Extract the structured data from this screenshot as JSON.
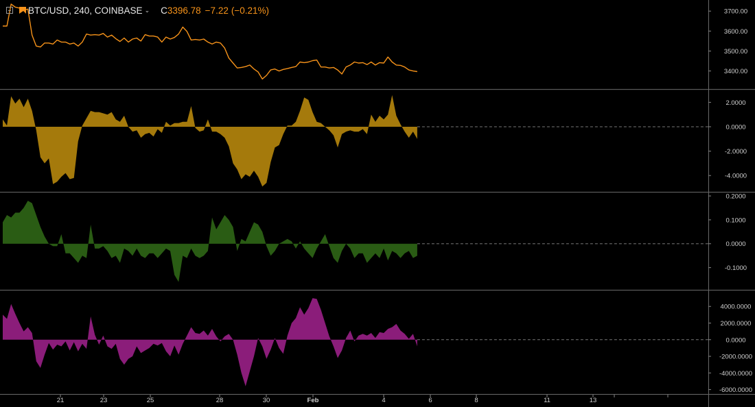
{
  "header": {
    "symbol": "BTC/USD, 240, COINBASE",
    "close_label": "C",
    "close_value": "3396.78",
    "change": "−7.22",
    "change_pct": "(−0.21%)",
    "icon": "flag-icon",
    "accent": "#f7931a"
  },
  "x_axis": {
    "ticks": [
      "21",
      "23",
      "25",
      "28",
      "30",
      "Feb",
      "4",
      "6",
      "8",
      "11",
      "13"
    ]
  },
  "panes": [
    {
      "id": "price",
      "type": "line",
      "color": "#f7931a",
      "ylim": [
        3330,
        3735
      ],
      "ticks": [
        3700,
        3600,
        3500,
        3400
      ],
      "tick_labels": [
        "3700.00",
        "3600.00",
        "3500.00",
        "3400.00"
      ],
      "values": [
        3625,
        3625,
        3735,
        3720,
        3715,
        3705,
        3710,
        3580,
        3525,
        3520,
        3540,
        3540,
        3535,
        3555,
        3545,
        3545,
        3535,
        3540,
        3525,
        3545,
        3585,
        3580,
        3582,
        3580,
        3588,
        3570,
        3580,
        3562,
        3548,
        3565,
        3545,
        3560,
        3565,
        3550,
        3582,
        3575,
        3575,
        3570,
        3545,
        3570,
        3560,
        3568,
        3585,
        3620,
        3598,
        3555,
        3558,
        3555,
        3560,
        3545,
        3535,
        3545,
        3540,
        3515,
        3465,
        3440,
        3415,
        3418,
        3422,
        3430,
        3410,
        3395,
        3360,
        3378,
        3405,
        3410,
        3400,
        3408,
        3412,
        3418,
        3422,
        3445,
        3442,
        3445,
        3452,
        3455,
        3420,
        3420,
        3415,
        3418,
        3405,
        3385,
        3420,
        3430,
        3445,
        3440,
        3442,
        3432,
        3445,
        3430,
        3442,
        3440,
        3470,
        3445,
        3430,
        3428,
        3420,
        3405,
        3400,
        3397
      ]
    },
    {
      "id": "osc1",
      "type": "area",
      "color": "#a57a0c",
      "ylim": [
        -5.0,
        2.75
      ],
      "ticks": [
        2,
        0,
        -2,
        -4
      ],
      "tick_labels": [
        "2.0000",
        "0.0000",
        "-2.0000",
        "-4.0000"
      ],
      "values": [
        0.6,
        0.1,
        2.5,
        1.9,
        2.3,
        1.6,
        2.3,
        1.3,
        -0.3,
        -2.5,
        -3.0,
        -2.6,
        -4.7,
        -4.5,
        -4.1,
        -3.8,
        -4.3,
        -4.2,
        -1.2,
        0.1,
        0.7,
        1.3,
        1.2,
        1.2,
        1.1,
        1.0,
        1.2,
        0.6,
        0.4,
        0.9,
        0.0,
        -0.4,
        -0.3,
        -0.9,
        -0.6,
        -0.5,
        -0.8,
        -0.2,
        -0.5,
        0.4,
        0.1,
        0.3,
        0.3,
        0.4,
        0.4,
        1.7,
        -0.1,
        -0.4,
        -0.3,
        0.6,
        -0.4,
        -0.4,
        -0.6,
        -0.9,
        -1.6,
        -3.0,
        -3.5,
        -4.3,
        -3.9,
        -4.1,
        -3.6,
        -4.1,
        -4.9,
        -4.6,
        -2.9,
        -1.7,
        -1.5,
        -0.6,
        0.1,
        0.1,
        0.4,
        1.3,
        2.4,
        2.2,
        1.2,
        0.4,
        0.3,
        0.0,
        -0.3,
        -0.7,
        -1.7,
        -0.6,
        -0.4,
        -0.3,
        -0.4,
        -0.4,
        -0.2,
        -0.6,
        1.0,
        0.4,
        0.9,
        0.6,
        1.0,
        2.6,
        0.9,
        0.2,
        -0.4,
        -0.9,
        -0.4,
        -1.0
      ]
    },
    {
      "id": "osc2",
      "type": "area",
      "color": "#2a5c14",
      "ylim": [
        -0.17,
        0.2
      ],
      "ticks": [
        0.2,
        0.1,
        0,
        -0.1
      ],
      "tick_labels": [
        "0.2000",
        "0.1000",
        "0.0000",
        "-0.1000"
      ],
      "values": [
        0.09,
        0.12,
        0.11,
        0.13,
        0.13,
        0.15,
        0.18,
        0.17,
        0.12,
        0.07,
        0.03,
        0.0,
        -0.01,
        -0.01,
        0.04,
        -0.04,
        -0.04,
        -0.06,
        -0.08,
        -0.05,
        -0.06,
        0.08,
        -0.02,
        -0.02,
        -0.01,
        -0.03,
        -0.06,
        -0.05,
        -0.08,
        -0.02,
        -0.03,
        -0.05,
        -0.02,
        -0.05,
        -0.06,
        -0.04,
        -0.04,
        -0.06,
        -0.04,
        -0.02,
        -0.03,
        -0.13,
        -0.16,
        -0.05,
        -0.06,
        -0.02,
        -0.05,
        -0.06,
        -0.05,
        -0.03,
        0.11,
        0.06,
        0.09,
        0.12,
        0.1,
        0.07,
        -0.03,
        0.02,
        0.01,
        0.05,
        0.09,
        0.08,
        0.05,
        -0.01,
        -0.05,
        -0.03,
        0.0,
        0.01,
        0.02,
        0.01,
        -0.02,
        0.01,
        -0.02,
        -0.04,
        -0.06,
        -0.02,
        0.01,
        0.04,
        -0.01,
        -0.06,
        -0.08,
        -0.03,
        0.0,
        -0.02,
        -0.06,
        -0.04,
        -0.04,
        -0.08,
        -0.06,
        -0.04,
        -0.06,
        -0.02,
        -0.07,
        -0.03,
        -0.04,
        -0.06,
        -0.04,
        -0.03,
        -0.06,
        -0.05
      ]
    },
    {
      "id": "osc3",
      "type": "area",
      "color": "#8b1d7a",
      "ylim": [
        -6200,
        5500
      ],
      "ticks": [
        4000,
        2000,
        0,
        -2000,
        -4000,
        -6000
      ],
      "tick_labels": [
        "4000.0000",
        "2000.0000",
        "0.0000",
        "-2000.0000",
        "-4000.0000",
        "-6000.0000"
      ],
      "values": [
        3000,
        2500,
        4300,
        3100,
        2000,
        1000,
        1500,
        800,
        -2600,
        -3400,
        -1800,
        -400,
        -1200,
        -600,
        -800,
        -200,
        -1300,
        -300,
        -1400,
        -500,
        -1100,
        2800,
        600,
        -600,
        500,
        -800,
        -1100,
        -500,
        -2300,
        -3000,
        -2300,
        -2000,
        -800,
        -1600,
        -1300,
        -1000,
        -500,
        -700,
        -400,
        -1400,
        -2000,
        -700,
        -1800,
        -500,
        500,
        1500,
        800,
        700,
        1100,
        500,
        1300,
        400,
        -200,
        400,
        700,
        0,
        -1800,
        -4000,
        -5600,
        -3800,
        -2000,
        200,
        -800,
        -2300,
        -1200,
        200,
        -1000,
        -1700,
        500,
        2000,
        2600,
        3900,
        3000,
        3800,
        5000,
        4900,
        3600,
        2000,
        400,
        -800,
        -2200,
        -1300,
        200,
        1100,
        -200,
        500,
        700,
        500,
        800,
        200,
        900,
        800,
        1300,
        1500,
        1900,
        1100,
        700,
        100,
        700,
        -800
      ]
    }
  ]
}
